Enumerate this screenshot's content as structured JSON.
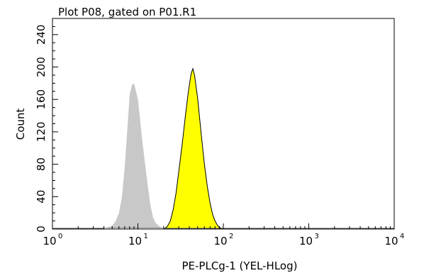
{
  "chart_data": {
    "type": "area",
    "title": "Plot P08, gated on P01.R1",
    "xlabel": "PE-PLCg-1 (YEL-HLog)",
    "ylabel": "Count",
    "x_scale": "log",
    "xlim": [
      1,
      10000
    ],
    "ylim": [
      0,
      260
    ],
    "x_ticks": [
      {
        "value": 1,
        "base": "10",
        "exp": "0"
      },
      {
        "value": 10,
        "base": "10",
        "exp": "1"
      },
      {
        "value": 100,
        "base": "10",
        "exp": "2"
      },
      {
        "value": 1000,
        "base": "10",
        "exp": "3"
      },
      {
        "value": 10000,
        "base": "10",
        "exp": "4"
      }
    ],
    "y_ticks": [
      "0",
      "40",
      "80",
      "120",
      "160",
      "200",
      "240"
    ],
    "grid": false,
    "series": [
      {
        "color": "#c8c8c8",
        "outline": false,
        "points": [
          [
            4.0,
            0
          ],
          [
            4.5,
            2
          ],
          [
            5.0,
            4
          ],
          [
            5.5,
            10
          ],
          [
            6.0,
            20
          ],
          [
            6.5,
            40
          ],
          [
            7.0,
            75
          ],
          [
            7.5,
            120
          ],
          [
            8.0,
            165
          ],
          [
            8.5,
            178
          ],
          [
            9.0,
            180
          ],
          [
            9.5,
            170
          ],
          [
            10.0,
            160
          ],
          [
            10.5,
            140
          ],
          [
            11.0,
            118
          ],
          [
            12.0,
            85
          ],
          [
            13.0,
            55
          ],
          [
            14.0,
            30
          ],
          [
            15.0,
            15
          ],
          [
            16.0,
            8
          ],
          [
            18.0,
            3
          ],
          [
            20.0,
            0
          ]
        ]
      },
      {
        "color": "#ffff00",
        "outline": true,
        "points": [
          [
            20,
            0
          ],
          [
            22,
            3
          ],
          [
            24,
            10
          ],
          [
            26,
            25
          ],
          [
            28,
            45
          ],
          [
            30,
            70
          ],
          [
            33,
            105
          ],
          [
            36,
            140
          ],
          [
            39,
            170
          ],
          [
            42,
            192
          ],
          [
            44,
            198
          ],
          [
            46,
            190
          ],
          [
            50,
            162
          ],
          [
            55,
            118
          ],
          [
            60,
            80
          ],
          [
            65,
            52
          ],
          [
            70,
            32
          ],
          [
            75,
            18
          ],
          [
            80,
            10
          ],
          [
            85,
            5
          ],
          [
            90,
            2
          ],
          [
            100,
            0
          ]
        ]
      }
    ]
  }
}
